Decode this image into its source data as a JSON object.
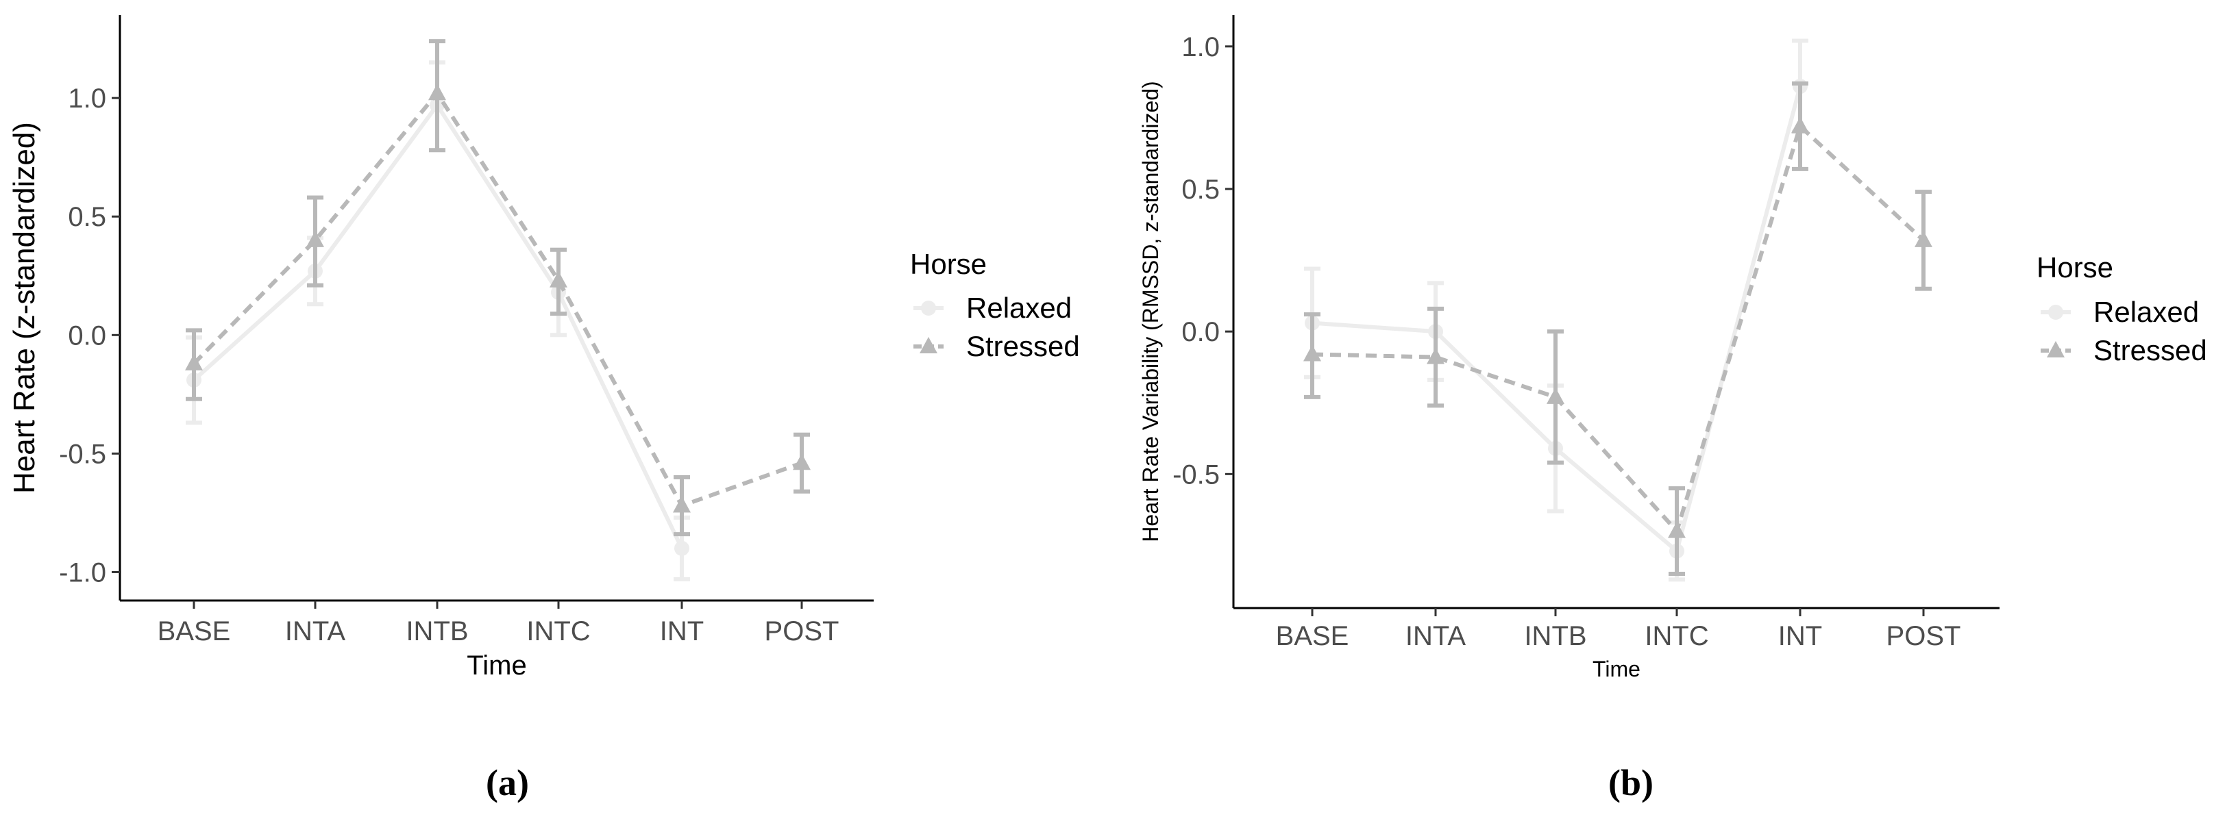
{
  "chart_data": [
    {
      "type": "line",
      "panel_label": "(a)",
      "xlabel": "Time",
      "ylabel": "Heart Rate (z-standardized)",
      "categories": [
        "BASE",
        "INTA",
        "INTB",
        "INTC",
        "INT",
        "POST"
      ],
      "yticks": [
        -1.0,
        -0.5,
        0.0,
        0.5,
        1.0
      ],
      "ytick_labels": [
        "-1.0",
        "-0.5",
        "0.0",
        "0.5",
        "1.0"
      ],
      "ylim": [
        -1.12,
        1.35
      ],
      "grid": false,
      "legend": {
        "title": "Horse",
        "placement": "right"
      },
      "series": [
        {
          "name": "Relaxed",
          "marker": "circle",
          "line": "solid",
          "color": "#ececec",
          "values": [
            -0.19,
            0.27,
            0.97,
            0.18,
            -0.9,
            null
          ],
          "lower": [
            -0.37,
            0.13,
            0.78,
            0.0,
            -1.03,
            null
          ],
          "upper": [
            -0.01,
            0.41,
            1.15,
            0.36,
            -0.77,
            null
          ]
        },
        {
          "name": "Stressed",
          "marker": "triangle",
          "line": "dashed",
          "color": "#b8b8b8",
          "values": [
            -0.12,
            0.4,
            1.02,
            0.23,
            -0.72,
            -0.54
          ],
          "lower": [
            -0.27,
            0.21,
            0.78,
            0.09,
            -0.84,
            -0.66
          ],
          "upper": [
            0.02,
            0.58,
            1.24,
            0.36,
            -0.6,
            -0.42
          ]
        }
      ]
    },
    {
      "type": "line",
      "panel_label": "(b)",
      "xlabel": "Time",
      "ylabel": "Heart Rate Variability (RMSSD, z-standardized)",
      "categories": [
        "BASE",
        "INTA",
        "INTB",
        "INTC",
        "INT",
        "POST"
      ],
      "yticks": [
        -0.5,
        0.0,
        0.5,
        1.0
      ],
      "ytick_labels": [
        "-0.5",
        "0.0",
        "0.5",
        "1.0"
      ],
      "ylim": [
        -0.97,
        1.11
      ],
      "grid": false,
      "legend": {
        "title": "Horse",
        "placement": "right"
      },
      "series": [
        {
          "name": "Relaxed",
          "marker": "circle",
          "line": "solid",
          "color": "#ececec",
          "values": [
            0.03,
            0.0,
            -0.41,
            -0.77,
            0.86,
            null
          ],
          "lower": [
            -0.16,
            -0.17,
            -0.63,
            -0.87,
            0.7,
            null
          ],
          "upper": [
            0.22,
            0.17,
            -0.19,
            -0.67,
            1.02,
            null
          ]
        },
        {
          "name": "Stressed",
          "marker": "triangle",
          "line": "dashed",
          "color": "#b8b8b8",
          "values": [
            -0.08,
            -0.09,
            -0.23,
            -0.7,
            0.72,
            0.32
          ],
          "lower": [
            -0.23,
            -0.26,
            -0.46,
            -0.85,
            0.57,
            0.15
          ],
          "upper": [
            0.06,
            0.08,
            0.0,
            -0.55,
            0.87,
            0.49
          ]
        }
      ]
    }
  ]
}
